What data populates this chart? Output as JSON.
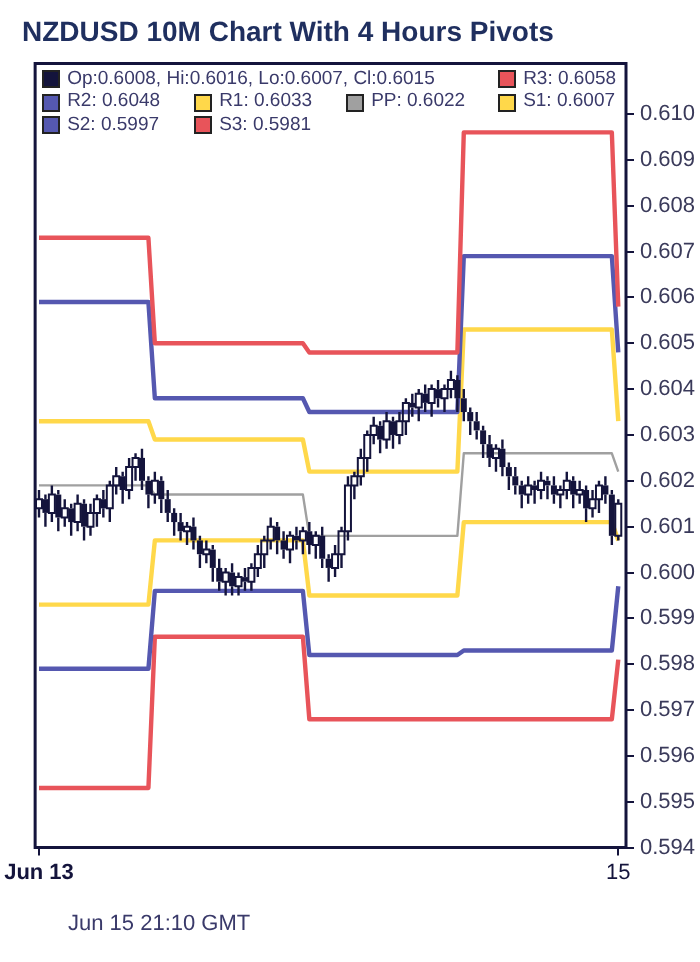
{
  "chart_data": {
    "type": "candlestick",
    "title": "NZDUSD 10M Chart With 4 Hours Pivots",
    "categories": [
      "Jun 13",
      null,
      null,
      null,
      null,
      null,
      null,
      null,
      null,
      null,
      null,
      null,
      null,
      null,
      null,
      null,
      null,
      null,
      null,
      null,
      null,
      null,
      null,
      null,
      null,
      null,
      null,
      null,
      null,
      null,
      null,
      null,
      null,
      null,
      null,
      null,
      null,
      null,
      null,
      null,
      null,
      null,
      null,
      null,
      null,
      null,
      null,
      null,
      null,
      null,
      null,
      null,
      null,
      null,
      null,
      null,
      null,
      null,
      null,
      null,
      null,
      null,
      null,
      null,
      null,
      null,
      null,
      null,
      null,
      null,
      null,
      null,
      null,
      null,
      null,
      null,
      null,
      null,
      null,
      null,
      null,
      null,
      null,
      null,
      null,
      null,
      null,
      null,
      null,
      null,
      "15"
    ],
    "ylim": [
      0.594,
      0.6111
    ],
    "yticks": [
      {
        "value": 0.594,
        "label": "0.594"
      },
      {
        "value": 0.595,
        "label": "0.595"
      },
      {
        "value": 0.596,
        "label": "0.596"
      },
      {
        "value": 0.597,
        "label": "0.597"
      },
      {
        "value": 0.598,
        "label": "0.598"
      },
      {
        "value": 0.599,
        "label": "0.599"
      },
      {
        "value": 0.6,
        "label": "0.600"
      },
      {
        "value": 0.601,
        "label": "0.601"
      },
      {
        "value": 0.602,
        "label": "0.602"
      },
      {
        "value": 0.603,
        "label": "0.603"
      },
      {
        "value": 0.604,
        "label": "0.604"
      },
      {
        "value": 0.605,
        "label": "0.605"
      },
      {
        "value": 0.606,
        "label": "0.606"
      },
      {
        "value": 0.607,
        "label": "0.607"
      },
      {
        "value": 0.608,
        "label": "0.608"
      },
      {
        "value": 0.609,
        "label": "0.609"
      },
      {
        "value": 0.61,
        "label": "0.610"
      }
    ],
    "grid": false,
    "legend": "top left",
    "annotations": [
      "Jun 15 21:10 GMT"
    ],
    "series": [
      {
        "name": "Op:0.6008, Hi:0.6016, Lo:0.6007, Cl:0.6015",
        "type": "candlestick",
        "color": "#14143c",
        "ohlc": [
          [
            0.6014,
            0.6018,
            0.6012,
            0.6016
          ],
          [
            0.6016,
            0.6017,
            0.601,
            0.6013
          ],
          [
            0.6013,
            0.6019,
            0.6011,
            0.6017
          ],
          [
            0.6017,
            0.6018,
            0.6009,
            0.6012
          ],
          [
            0.6012,
            0.6016,
            0.601,
            0.6014
          ],
          [
            0.6014,
            0.6015,
            0.6008,
            0.6011
          ],
          [
            0.6011,
            0.6017,
            0.6009,
            0.6015
          ],
          [
            0.6015,
            0.6016,
            0.6007,
            0.601
          ],
          [
            0.601,
            0.6015,
            0.6008,
            0.6013
          ],
          [
            0.6013,
            0.6017,
            0.601,
            0.6016
          ],
          [
            0.6016,
            0.6018,
            0.6012,
            0.6014
          ],
          [
            0.6014,
            0.602,
            0.6011,
            0.6019
          ],
          [
            0.6019,
            0.6023,
            0.6017,
            0.6021
          ],
          [
            0.6021,
            0.6022,
            0.6015,
            0.6018
          ],
          [
            0.6018,
            0.6025,
            0.6016,
            0.6023
          ],
          [
            0.6023,
            0.6026,
            0.602,
            0.6025
          ],
          [
            0.6025,
            0.6027,
            0.6018,
            0.602
          ],
          [
            0.602,
            0.6021,
            0.6014,
            0.6017
          ],
          [
            0.6017,
            0.6022,
            0.6015,
            0.602
          ],
          [
            0.602,
            0.6021,
            0.6013,
            0.6016
          ],
          [
            0.6016,
            0.6018,
            0.6011,
            0.6013
          ],
          [
            0.6013,
            0.6014,
            0.6008,
            0.6011
          ],
          [
            0.6011,
            0.6013,
            0.6007,
            0.6009
          ],
          [
            0.6009,
            0.6011,
            0.6006,
            0.601
          ],
          [
            0.601,
            0.6012,
            0.6005,
            0.6007
          ],
          [
            0.6007,
            0.6008,
            0.6001,
            0.6004
          ],
          [
            0.6004,
            0.6007,
            0.6002,
            0.6005
          ],
          [
            0.6005,
            0.6006,
            0.5998,
            0.6001
          ],
          [
            0.6001,
            0.6003,
            0.5996,
            0.5998
          ],
          [
            0.5998,
            0.6001,
            0.5995,
            0.6
          ],
          [
            0.6,
            0.6002,
            0.5995,
            0.5997
          ],
          [
            0.5997,
            0.6,
            0.5995,
            0.5999
          ],
          [
            0.5999,
            0.6001,
            0.5996,
            0.5998
          ],
          [
            0.5998,
            0.6002,
            0.5996,
            0.6001
          ],
          [
            0.6001,
            0.6006,
            0.5999,
            0.6004
          ],
          [
            0.6004,
            0.6008,
            0.6001,
            0.6007
          ],
          [
            0.6007,
            0.6012,
            0.6005,
            0.601
          ],
          [
            0.601,
            0.6011,
            0.6004,
            0.6007
          ],
          [
            0.6007,
            0.6009,
            0.6003,
            0.6005
          ],
          [
            0.6005,
            0.6009,
            0.6002,
            0.6008
          ],
          [
            0.6008,
            0.601,
            0.6005,
            0.6007
          ],
          [
            0.6007,
            0.601,
            0.6004,
            0.6009
          ],
          [
            0.6009,
            0.6011,
            0.6004,
            0.6006
          ],
          [
            0.6006,
            0.6009,
            0.6003,
            0.6008
          ],
          [
            0.6008,
            0.601,
            0.6001,
            0.6003
          ],
          [
            0.6003,
            0.6004,
            0.5998,
            0.6001
          ],
          [
            0.6001,
            0.6006,
            0.5999,
            0.6004
          ],
          [
            0.6004,
            0.601,
            0.6001,
            0.6009
          ],
          [
            0.6009,
            0.6021,
            0.6007,
            0.6019
          ],
          [
            0.6019,
            0.6022,
            0.6016,
            0.6021
          ],
          [
            0.6021,
            0.6027,
            0.6019,
            0.6025
          ],
          [
            0.6025,
            0.6031,
            0.6022,
            0.603
          ],
          [
            0.603,
            0.6034,
            0.6028,
            0.6032
          ],
          [
            0.6032,
            0.6033,
            0.6026,
            0.6029
          ],
          [
            0.6029,
            0.6035,
            0.6027,
            0.6033
          ],
          [
            0.6033,
            0.6034,
            0.6027,
            0.603
          ],
          [
            0.603,
            0.6035,
            0.6028,
            0.6033
          ],
          [
            0.6033,
            0.6038,
            0.603,
            0.6037
          ],
          [
            0.6037,
            0.6039,
            0.6034,
            0.6036
          ],
          [
            0.6036,
            0.604,
            0.6033,
            0.6039
          ],
          [
            0.6039,
            0.6041,
            0.6035,
            0.6037
          ],
          [
            0.6037,
            0.6041,
            0.6034,
            0.604
          ],
          [
            0.604,
            0.6042,
            0.6036,
            0.6038
          ],
          [
            0.6038,
            0.6041,
            0.6035,
            0.604
          ],
          [
            0.604,
            0.6044,
            0.6038,
            0.6042
          ],
          [
            0.6042,
            0.6043,
            0.6035,
            0.6038
          ],
          [
            0.6038,
            0.604,
            0.6033,
            0.6035
          ],
          [
            0.6035,
            0.6036,
            0.603,
            0.6033
          ],
          [
            0.6033,
            0.6035,
            0.6029,
            0.6031
          ],
          [
            0.6031,
            0.6032,
            0.6025,
            0.6028
          ],
          [
            0.6028,
            0.603,
            0.6023,
            0.6025
          ],
          [
            0.6025,
            0.6028,
            0.6022,
            0.6027
          ],
          [
            0.6027,
            0.6029,
            0.6021,
            0.6023
          ],
          [
            0.6023,
            0.6024,
            0.6018,
            0.6021
          ],
          [
            0.6021,
            0.6023,
            0.6017,
            0.6019
          ],
          [
            0.6019,
            0.602,
            0.6014,
            0.6017
          ],
          [
            0.6017,
            0.6021,
            0.6015,
            0.6019
          ],
          [
            0.6019,
            0.602,
            0.6015,
            0.6018
          ],
          [
            0.6018,
            0.6022,
            0.6016,
            0.602
          ],
          [
            0.602,
            0.6021,
            0.6016,
            0.6019
          ],
          [
            0.6019,
            0.6021,
            0.6015,
            0.6017
          ],
          [
            0.6017,
            0.6019,
            0.6014,
            0.6018
          ],
          [
            0.6018,
            0.6022,
            0.6016,
            0.602
          ],
          [
            0.602,
            0.6021,
            0.6014,
            0.6017
          ],
          [
            0.6017,
            0.602,
            0.6015,
            0.6018
          ],
          [
            0.6018,
            0.6019,
            0.6011,
            0.6014
          ],
          [
            0.6014,
            0.6018,
            0.6012,
            0.6016
          ],
          [
            0.6016,
            0.602,
            0.6013,
            0.6019
          ],
          [
            0.6019,
            0.6021,
            0.6015,
            0.6017
          ],
          [
            0.6017,
            0.6018,
            0.6006,
            0.6008
          ],
          [
            0.6008,
            0.6016,
            0.6007,
            0.6015
          ]
        ]
      },
      {
        "name": "R3: 0.6058",
        "type": "line",
        "color": "#e8545a",
        "values": [
          0.6073,
          0.6073,
          0.6073,
          0.6073,
          0.6073,
          0.6073,
          0.6073,
          0.6073,
          0.6073,
          0.6073,
          0.6073,
          0.6073,
          0.6073,
          0.6073,
          0.6073,
          0.6073,
          0.6073,
          0.6073,
          0.605,
          0.605,
          0.605,
          0.605,
          0.605,
          0.605,
          0.605,
          0.605,
          0.605,
          0.605,
          0.605,
          0.605,
          0.605,
          0.605,
          0.605,
          0.605,
          0.605,
          0.605,
          0.605,
          0.605,
          0.605,
          0.605,
          0.605,
          0.605,
          0.6048,
          0.6048,
          0.6048,
          0.6048,
          0.6048,
          0.6048,
          0.6048,
          0.6048,
          0.6048,
          0.6048,
          0.6048,
          0.6048,
          0.6048,
          0.6048,
          0.6048,
          0.6048,
          0.6048,
          0.6048,
          0.6048,
          0.6048,
          0.6048,
          0.6048,
          0.6048,
          0.6048,
          0.6096,
          0.6096,
          0.6096,
          0.6096,
          0.6096,
          0.6096,
          0.6096,
          0.6096,
          0.6096,
          0.6096,
          0.6096,
          0.6096,
          0.6096,
          0.6096,
          0.6096,
          0.6096,
          0.6096,
          0.6096,
          0.6096,
          0.6096,
          0.6096,
          0.6096,
          0.6096,
          0.6096,
          0.6058
        ]
      },
      {
        "name": "R2: 0.6048",
        "type": "line",
        "color": "#5558b0",
        "values": [
          0.6059,
          0.6059,
          0.6059,
          0.6059,
          0.6059,
          0.6059,
          0.6059,
          0.6059,
          0.6059,
          0.6059,
          0.6059,
          0.6059,
          0.6059,
          0.6059,
          0.6059,
          0.6059,
          0.6059,
          0.6059,
          0.6038,
          0.6038,
          0.6038,
          0.6038,
          0.6038,
          0.6038,
          0.6038,
          0.6038,
          0.6038,
          0.6038,
          0.6038,
          0.6038,
          0.6038,
          0.6038,
          0.6038,
          0.6038,
          0.6038,
          0.6038,
          0.6038,
          0.6038,
          0.6038,
          0.6038,
          0.6038,
          0.6038,
          0.6035,
          0.6035,
          0.6035,
          0.6035,
          0.6035,
          0.6035,
          0.6035,
          0.6035,
          0.6035,
          0.6035,
          0.6035,
          0.6035,
          0.6035,
          0.6035,
          0.6035,
          0.6035,
          0.6035,
          0.6035,
          0.6035,
          0.6035,
          0.6035,
          0.6035,
          0.6035,
          0.6035,
          0.6069,
          0.6069,
          0.6069,
          0.6069,
          0.6069,
          0.6069,
          0.6069,
          0.6069,
          0.6069,
          0.6069,
          0.6069,
          0.6069,
          0.6069,
          0.6069,
          0.6069,
          0.6069,
          0.6069,
          0.6069,
          0.6069,
          0.6069,
          0.6069,
          0.6069,
          0.6069,
          0.6069,
          0.6048
        ]
      },
      {
        "name": "R1: 0.6033",
        "type": "line",
        "color": "#ffd84a",
        "values": [
          0.6033,
          0.6033,
          0.6033,
          0.6033,
          0.6033,
          0.6033,
          0.6033,
          0.6033,
          0.6033,
          0.6033,
          0.6033,
          0.6033,
          0.6033,
          0.6033,
          0.6033,
          0.6033,
          0.6033,
          0.6033,
          0.6029,
          0.6029,
          0.6029,
          0.6029,
          0.6029,
          0.6029,
          0.6029,
          0.6029,
          0.6029,
          0.6029,
          0.6029,
          0.6029,
          0.6029,
          0.6029,
          0.6029,
          0.6029,
          0.6029,
          0.6029,
          0.6029,
          0.6029,
          0.6029,
          0.6029,
          0.6029,
          0.6029,
          0.6022,
          0.6022,
          0.6022,
          0.6022,
          0.6022,
          0.6022,
          0.6022,
          0.6022,
          0.6022,
          0.6022,
          0.6022,
          0.6022,
          0.6022,
          0.6022,
          0.6022,
          0.6022,
          0.6022,
          0.6022,
          0.6022,
          0.6022,
          0.6022,
          0.6022,
          0.6022,
          0.6022,
          0.6053,
          0.6053,
          0.6053,
          0.6053,
          0.6053,
          0.6053,
          0.6053,
          0.6053,
          0.6053,
          0.6053,
          0.6053,
          0.6053,
          0.6053,
          0.6053,
          0.6053,
          0.6053,
          0.6053,
          0.6053,
          0.6053,
          0.6053,
          0.6053,
          0.6053,
          0.6053,
          0.6053,
          0.6033
        ]
      },
      {
        "name": "PP: 0.6022",
        "type": "line",
        "color": "#a0a0a0",
        "values": [
          0.6019,
          0.6019,
          0.6019,
          0.6019,
          0.6019,
          0.6019,
          0.6019,
          0.6019,
          0.6019,
          0.6019,
          0.6019,
          0.6019,
          0.6019,
          0.6019,
          0.6019,
          0.6019,
          0.6019,
          0.6019,
          0.6017,
          0.6017,
          0.6017,
          0.6017,
          0.6017,
          0.6017,
          0.6017,
          0.6017,
          0.6017,
          0.6017,
          0.6017,
          0.6017,
          0.6017,
          0.6017,
          0.6017,
          0.6017,
          0.6017,
          0.6017,
          0.6017,
          0.6017,
          0.6017,
          0.6017,
          0.6017,
          0.6017,
          0.6008,
          0.6008,
          0.6008,
          0.6008,
          0.6008,
          0.6008,
          0.6008,
          0.6008,
          0.6008,
          0.6008,
          0.6008,
          0.6008,
          0.6008,
          0.6008,
          0.6008,
          0.6008,
          0.6008,
          0.6008,
          0.6008,
          0.6008,
          0.6008,
          0.6008,
          0.6008,
          0.6008,
          0.6026,
          0.6026,
          0.6026,
          0.6026,
          0.6026,
          0.6026,
          0.6026,
          0.6026,
          0.6026,
          0.6026,
          0.6026,
          0.6026,
          0.6026,
          0.6026,
          0.6026,
          0.6026,
          0.6026,
          0.6026,
          0.6026,
          0.6026,
          0.6026,
          0.6026,
          0.6026,
          0.6026,
          0.6022
        ]
      },
      {
        "name": "S1: 0.6007",
        "type": "line",
        "color": "#ffd84a",
        "values": [
          0.5993,
          0.5993,
          0.5993,
          0.5993,
          0.5993,
          0.5993,
          0.5993,
          0.5993,
          0.5993,
          0.5993,
          0.5993,
          0.5993,
          0.5993,
          0.5993,
          0.5993,
          0.5993,
          0.5993,
          0.5993,
          0.6007,
          0.6007,
          0.6007,
          0.6007,
          0.6007,
          0.6007,
          0.6007,
          0.6007,
          0.6007,
          0.6007,
          0.6007,
          0.6007,
          0.6007,
          0.6007,
          0.6007,
          0.6007,
          0.6007,
          0.6007,
          0.6007,
          0.6007,
          0.6007,
          0.6007,
          0.6007,
          0.6007,
          0.5995,
          0.5995,
          0.5995,
          0.5995,
          0.5995,
          0.5995,
          0.5995,
          0.5995,
          0.5995,
          0.5995,
          0.5995,
          0.5995,
          0.5995,
          0.5995,
          0.5995,
          0.5995,
          0.5995,
          0.5995,
          0.5995,
          0.5995,
          0.5995,
          0.5995,
          0.5995,
          0.5995,
          0.6011,
          0.6011,
          0.6011,
          0.6011,
          0.6011,
          0.6011,
          0.6011,
          0.6011,
          0.6011,
          0.6011,
          0.6011,
          0.6011,
          0.6011,
          0.6011,
          0.6011,
          0.6011,
          0.6011,
          0.6011,
          0.6011,
          0.6011,
          0.6011,
          0.6011,
          0.6011,
          0.6011,
          0.6007
        ]
      },
      {
        "name": "S2: 0.5997",
        "type": "line",
        "color": "#5558b0",
        "values": [
          0.5979,
          0.5979,
          0.5979,
          0.5979,
          0.5979,
          0.5979,
          0.5979,
          0.5979,
          0.5979,
          0.5979,
          0.5979,
          0.5979,
          0.5979,
          0.5979,
          0.5979,
          0.5979,
          0.5979,
          0.5979,
          0.5996,
          0.5996,
          0.5996,
          0.5996,
          0.5996,
          0.5996,
          0.5996,
          0.5996,
          0.5996,
          0.5996,
          0.5996,
          0.5996,
          0.5996,
          0.5996,
          0.5996,
          0.5996,
          0.5996,
          0.5996,
          0.5996,
          0.5996,
          0.5996,
          0.5996,
          0.5996,
          0.5996,
          0.5982,
          0.5982,
          0.5982,
          0.5982,
          0.5982,
          0.5982,
          0.5982,
          0.5982,
          0.5982,
          0.5982,
          0.5982,
          0.5982,
          0.5982,
          0.5982,
          0.5982,
          0.5982,
          0.5982,
          0.5982,
          0.5982,
          0.5982,
          0.5982,
          0.5982,
          0.5982,
          0.5982,
          0.5983,
          0.5983,
          0.5983,
          0.5983,
          0.5983,
          0.5983,
          0.5983,
          0.5983,
          0.5983,
          0.5983,
          0.5983,
          0.5983,
          0.5983,
          0.5983,
          0.5983,
          0.5983,
          0.5983,
          0.5983,
          0.5983,
          0.5983,
          0.5983,
          0.5983,
          0.5983,
          0.5983,
          0.5997
        ]
      },
      {
        "name": "S3: 0.5981",
        "type": "line",
        "color": "#e8545a",
        "values": [
          0.5953,
          0.5953,
          0.5953,
          0.5953,
          0.5953,
          0.5953,
          0.5953,
          0.5953,
          0.5953,
          0.5953,
          0.5953,
          0.5953,
          0.5953,
          0.5953,
          0.5953,
          0.5953,
          0.5953,
          0.5953,
          0.5986,
          0.5986,
          0.5986,
          0.5986,
          0.5986,
          0.5986,
          0.5986,
          0.5986,
          0.5986,
          0.5986,
          0.5986,
          0.5986,
          0.5986,
          0.5986,
          0.5986,
          0.5986,
          0.5986,
          0.5986,
          0.5986,
          0.5986,
          0.5986,
          0.5986,
          0.5986,
          0.5986,
          0.5968,
          0.5968,
          0.5968,
          0.5968,
          0.5968,
          0.5968,
          0.5968,
          0.5968,
          0.5968,
          0.5968,
          0.5968,
          0.5968,
          0.5968,
          0.5968,
          0.5968,
          0.5968,
          0.5968,
          0.5968,
          0.5968,
          0.5968,
          0.5968,
          0.5968,
          0.5968,
          0.5968,
          0.5968,
          0.5968,
          0.5968,
          0.5968,
          0.5968,
          0.5968,
          0.5968,
          0.5968,
          0.5968,
          0.5968,
          0.5968,
          0.5968,
          0.5968,
          0.5968,
          0.5968,
          0.5968,
          0.5968,
          0.5968,
          0.5968,
          0.5968,
          0.5968,
          0.5968,
          0.5968,
          0.5968,
          0.5981
        ]
      }
    ]
  }
}
